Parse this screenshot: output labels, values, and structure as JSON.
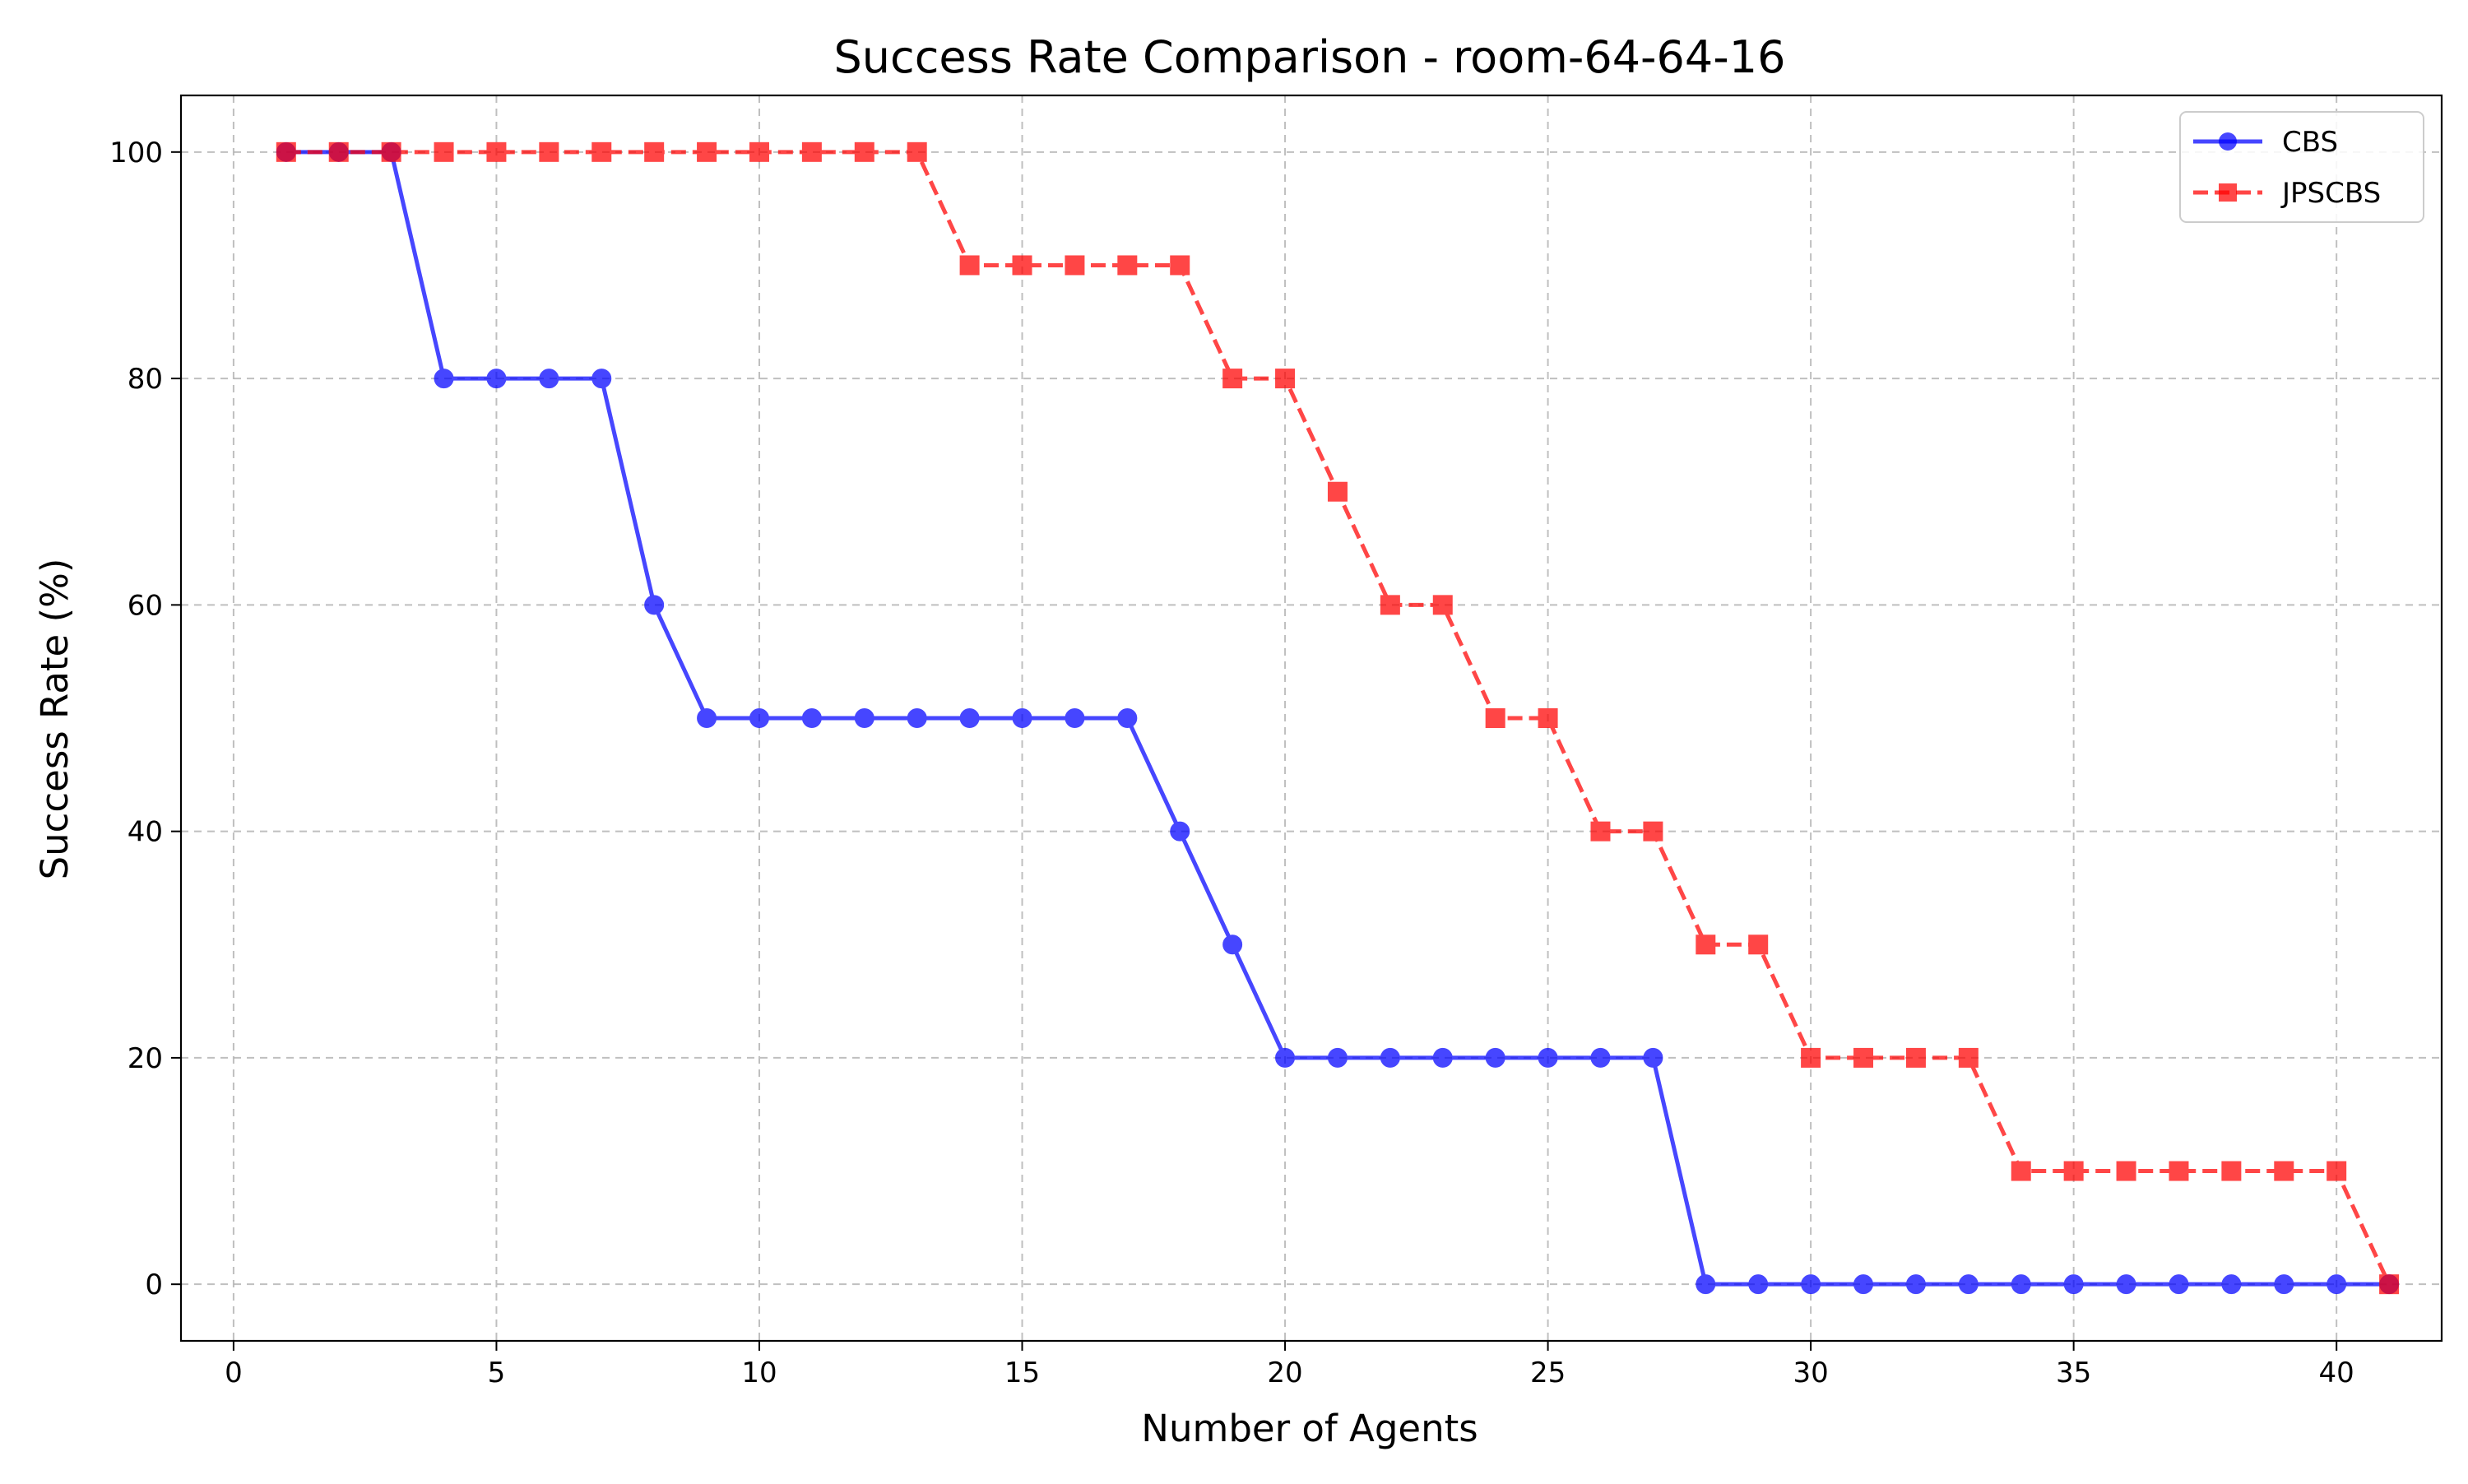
{
  "chart_data": {
    "type": "line",
    "title": "Success Rate Comparison - room-64-64-16",
    "xlabel": "Number of Agents",
    "ylabel": "Success Rate (%)",
    "xlim": [
      -1,
      42
    ],
    "ylim": [
      -5,
      105
    ],
    "x_ticks": [
      0,
      5,
      10,
      15,
      20,
      25,
      30,
      35,
      40
    ],
    "y_ticks": [
      0,
      20,
      40,
      60,
      80,
      100
    ],
    "grid": true,
    "legend_position": "top-right",
    "x": [
      1,
      2,
      3,
      4,
      5,
      6,
      7,
      8,
      9,
      10,
      11,
      12,
      13,
      14,
      15,
      16,
      17,
      18,
      19,
      20,
      21,
      22,
      23,
      24,
      25,
      26,
      27,
      28,
      29,
      30,
      31,
      32,
      33,
      34,
      35,
      36,
      37,
      38,
      39,
      40,
      41
    ],
    "series": [
      {
        "name": "CBS",
        "color": "#0000ff",
        "line_style": "solid",
        "marker": "circle",
        "values": [
          100,
          100,
          100,
          80,
          80,
          80,
          80,
          60,
          50,
          50,
          50,
          50,
          50,
          50,
          50,
          50,
          50,
          40,
          30,
          20,
          20,
          20,
          20,
          20,
          20,
          20,
          20,
          0,
          0,
          0,
          0,
          0,
          0,
          0,
          0,
          0,
          0,
          0,
          0,
          0,
          0
        ]
      },
      {
        "name": "JPSCBS",
        "color": "#ff0000",
        "line_style": "dashed",
        "marker": "square",
        "values": [
          100,
          100,
          100,
          100,
          100,
          100,
          100,
          100,
          100,
          100,
          100,
          100,
          100,
          90,
          90,
          90,
          90,
          90,
          80,
          80,
          70,
          60,
          60,
          50,
          50,
          40,
          40,
          30,
          30,
          20,
          20,
          20,
          20,
          10,
          10,
          10,
          10,
          10,
          10,
          10,
          0
        ]
      }
    ]
  }
}
